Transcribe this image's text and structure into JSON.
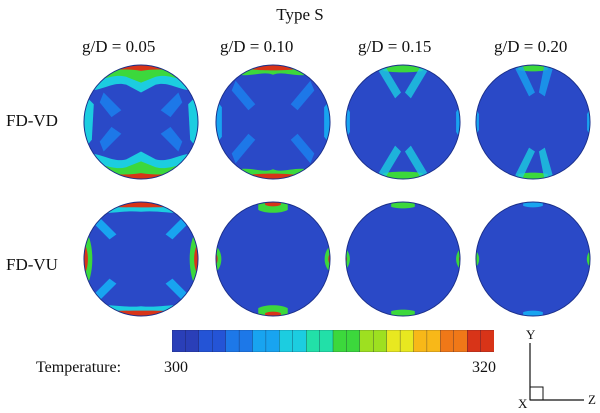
{
  "title": "Type S",
  "columns": [
    "g/D = 0.05",
    "g/D = 0.10",
    "g/D = 0.15",
    "g/D = 0.20"
  ],
  "rows": [
    "FD-VD",
    "FD-VU"
  ],
  "legend": {
    "label": "Temperature:",
    "min": "300",
    "max": "320",
    "colors": [
      "#2a3fb8",
      "#2454d6",
      "#1d78e8",
      "#18a4f0",
      "#1ccde0",
      "#22e0a8",
      "#3cd83c",
      "#9ee020",
      "#e8e820",
      "#f8b818",
      "#f07818",
      "#d83418"
    ]
  },
  "axes": {
    "y": "Y",
    "z": "Z",
    "x": "X"
  }
}
